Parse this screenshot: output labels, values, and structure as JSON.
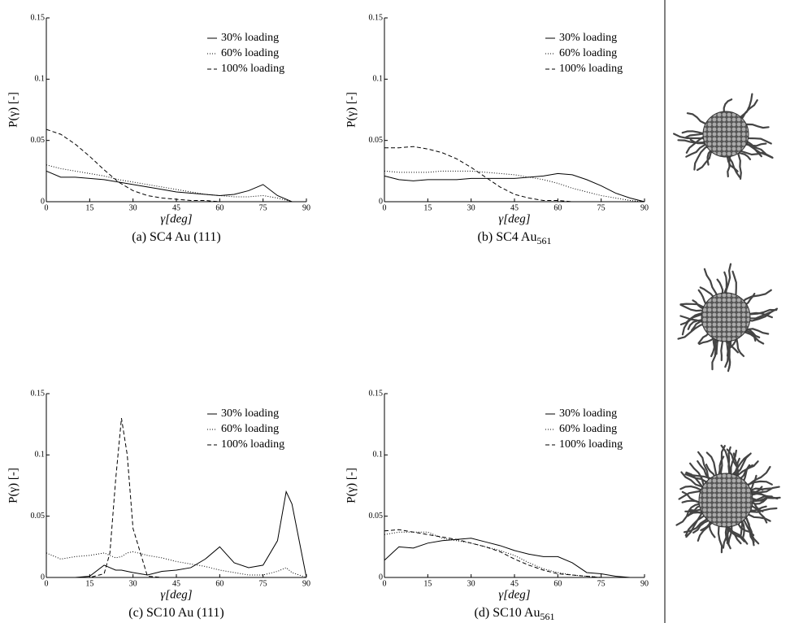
{
  "chart_data": [
    {
      "type": "line",
      "caption": "(a) SC4 Au (111)",
      "xlabel": "γ[deg]",
      "ylabel": "P(γ) [-]",
      "xlim": [
        0,
        90
      ],
      "ylim": [
        0,
        0.15
      ],
      "xticks": [
        0,
        15,
        30,
        45,
        60,
        75,
        90
      ],
      "yticks": [
        0,
        0.05,
        0.1,
        0.15
      ],
      "legend": "upper right",
      "x": [
        0,
        5,
        10,
        15,
        20,
        25,
        30,
        35,
        40,
        45,
        50,
        55,
        60,
        65,
        70,
        75,
        80,
        85,
        90
      ],
      "series": [
        {
          "name": "30% loading",
          "color": "#000000",
          "style": "solid",
          "values": [
            0.025,
            0.02,
            0.02,
            0.019,
            0.018,
            0.016,
            0.014,
            0.012,
            0.01,
            0.008,
            0.007,
            0.006,
            0.005,
            0.006,
            0.009,
            0.014,
            0.005,
            0,
            0
          ]
        },
        {
          "name": "60% loading",
          "color": "#000000",
          "style": "dotted",
          "values": [
            0.03,
            0.027,
            0.025,
            0.023,
            0.021,
            0.018,
            0.016,
            0.014,
            0.012,
            0.01,
            0.008,
            0.006,
            0.005,
            0.004,
            0.004,
            0.005,
            0.003,
            0,
            0
          ]
        },
        {
          "name": "100% loading",
          "color": "#000000",
          "style": "dashed",
          "values": [
            0.059,
            0.055,
            0.047,
            0.037,
            0.026,
            0.016,
            0.009,
            0.005,
            0.003,
            0.002,
            0.001,
            0.001,
            0,
            0,
            0,
            0,
            0,
            0,
            0
          ]
        }
      ]
    },
    {
      "type": "line",
      "caption": "(b) SC4 Au",
      "caption_subscript": "561",
      "xlabel": "γ[deg]",
      "ylabel": "P(γ) [-]",
      "xlim": [
        0,
        90
      ],
      "ylim": [
        0,
        0.15
      ],
      "xticks": [
        0,
        15,
        30,
        45,
        60,
        75,
        90
      ],
      "yticks": [
        0,
        0.05,
        0.1,
        0.15
      ],
      "legend": "upper right",
      "x": [
        0,
        5,
        10,
        15,
        20,
        25,
        30,
        35,
        40,
        45,
        50,
        55,
        60,
        65,
        70,
        75,
        80,
        85,
        90
      ],
      "series": [
        {
          "name": "30% loading",
          "color": "#000000",
          "style": "solid",
          "values": [
            0.021,
            0.018,
            0.017,
            0.018,
            0.018,
            0.018,
            0.019,
            0.019,
            0.019,
            0.019,
            0.02,
            0.021,
            0.023,
            0.022,
            0.018,
            0.013,
            0.007,
            0.003,
            0
          ]
        },
        {
          "name": "60% loading",
          "color": "#000000",
          "style": "dotted",
          "values": [
            0.025,
            0.024,
            0.024,
            0.024,
            0.025,
            0.025,
            0.025,
            0.024,
            0.023,
            0.022,
            0.02,
            0.018,
            0.015,
            0.011,
            0.008,
            0.005,
            0.003,
            0.001,
            0
          ]
        },
        {
          "name": "100% loading",
          "color": "#000000",
          "style": "dashed",
          "values": [
            0.044,
            0.044,
            0.045,
            0.043,
            0.04,
            0.035,
            0.028,
            0.02,
            0.012,
            0.006,
            0.003,
            0.001,
            0.001,
            0,
            0,
            0,
            0,
            0,
            0
          ]
        }
      ]
    },
    {
      "type": "line",
      "caption": "(c) SC10 Au (111)",
      "xlabel": "γ[deg]",
      "ylabel": "P(γ) [-]",
      "xlim": [
        0,
        90
      ],
      "ylim": [
        0,
        0.15
      ],
      "xticks": [
        0,
        15,
        30,
        45,
        60,
        75,
        90
      ],
      "yticks": [
        0,
        0.05,
        0.1,
        0.15
      ],
      "legend": "upper right",
      "x": [
        0,
        5,
        10,
        15,
        20,
        22,
        24,
        26,
        28,
        30,
        35,
        40,
        45,
        50,
        55,
        60,
        65,
        70,
        75,
        80,
        83,
        85,
        90
      ],
      "series": [
        {
          "name": "30% loading",
          "color": "#000000",
          "style": "solid",
          "values": [
            0,
            0,
            0,
            0.001,
            0.01,
            0.008,
            0.006,
            0.006,
            0.005,
            0.004,
            0.002,
            0.005,
            0.006,
            0.008,
            0.015,
            0.025,
            0.012,
            0.008,
            0.01,
            0.03,
            0.07,
            0.06,
            0
          ]
        },
        {
          "name": "60% loading",
          "color": "#000000",
          "style": "dotted",
          "values": [
            0.02,
            0.015,
            0.017,
            0.018,
            0.02,
            0.018,
            0.016,
            0.017,
            0.02,
            0.021,
            0.018,
            0.016,
            0.013,
            0.011,
            0.009,
            0.006,
            0.004,
            0.002,
            0.002,
            0.005,
            0.008,
            0.004,
            0
          ]
        },
        {
          "name": "100% loading",
          "color": "#000000",
          "style": "dashed",
          "values": [
            0,
            0,
            0,
            0,
            0.003,
            0.02,
            0.08,
            0.13,
            0.1,
            0.04,
            0.001,
            0,
            0,
            0,
            0,
            0,
            0,
            0,
            0,
            0,
            0,
            0,
            0
          ]
        }
      ]
    },
    {
      "type": "line",
      "caption": "(d) SC10 Au",
      "caption_subscript": "561",
      "xlabel": "γ[deg]",
      "ylabel": "P(γ) [-]",
      "xlim": [
        0,
        90
      ],
      "ylim": [
        0,
        0.15
      ],
      "xticks": [
        0,
        15,
        30,
        45,
        60,
        75,
        90
      ],
      "yticks": [
        0,
        0.05,
        0.1,
        0.15
      ],
      "legend": "upper right",
      "x": [
        0,
        5,
        10,
        15,
        20,
        25,
        30,
        35,
        40,
        45,
        50,
        55,
        60,
        65,
        70,
        75,
        80,
        85,
        90
      ],
      "series": [
        {
          "name": "30% loading",
          "color": "#000000",
          "style": "solid",
          "values": [
            0.014,
            0.025,
            0.024,
            0.028,
            0.03,
            0.031,
            0.032,
            0.029,
            0.026,
            0.022,
            0.019,
            0.017,
            0.017,
            0.012,
            0.004,
            0.003,
            0.001,
            0,
            0
          ]
        },
        {
          "name": "60% loading",
          "color": "#000000",
          "style": "dotted",
          "values": [
            0.035,
            0.037,
            0.037,
            0.037,
            0.032,
            0.03,
            0.028,
            0.025,
            0.022,
            0.018,
            0.012,
            0.007,
            0.004,
            0.002,
            0.001,
            0,
            0,
            0,
            0
          ]
        },
        {
          "name": "100% loading",
          "color": "#000000",
          "style": "dashed",
          "values": [
            0.038,
            0.039,
            0.037,
            0.035,
            0.033,
            0.031,
            0.028,
            0.025,
            0.021,
            0.015,
            0.01,
            0.006,
            0.003,
            0.002,
            0.001,
            0,
            0,
            0,
            0
          ]
        }
      ]
    }
  ]
}
